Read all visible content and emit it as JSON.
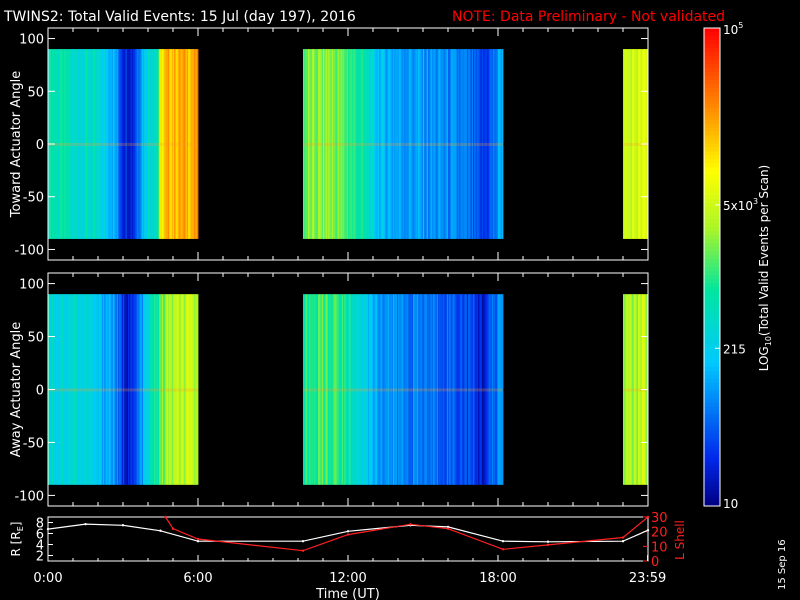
{
  "title": "TWINS2: Total Valid Events: 15 Jul (day 197), 2016",
  "note": "NOTE: Data Preliminary - Not validated",
  "date_stamp": "15 Sep 16",
  "colors": {
    "background": "#000000",
    "text": "#ffffff",
    "note": "#ff0000",
    "r_line": "#ffffff",
    "l_line": "#ff2020"
  },
  "chart_data": [
    {
      "type": "heatmap",
      "name": "toward",
      "ylabel": "Toward Actuator Angle",
      "ylim": [
        -110,
        110
      ],
      "yticks": [
        100,
        50,
        0,
        -50,
        -100
      ],
      "xlim": [
        0,
        24
      ],
      "data_y_range": [
        -90,
        90
      ],
      "segments": [
        {
          "t0": 0.0,
          "t1": 6.0,
          "profile": [
            [
              0.0,
              0.44
            ],
            [
              0.4,
              0.42
            ],
            [
              1.0,
              0.38
            ],
            [
              1.6,
              0.4
            ],
            [
              2.0,
              0.36
            ],
            [
              2.6,
              0.3
            ],
            [
              3.0,
              0.12
            ],
            [
              3.4,
              0.1
            ],
            [
              3.6,
              0.22
            ],
            [
              4.0,
              0.38
            ],
            [
              4.4,
              0.42
            ],
            [
              4.5,
              0.7
            ],
            [
              4.8,
              0.78
            ],
            [
              6.0,
              0.8
            ]
          ]
        },
        {
          "t0": 10.2,
          "t1": 18.2,
          "profile": [
            [
              10.2,
              0.52
            ],
            [
              11.2,
              0.56
            ],
            [
              12.0,
              0.5
            ],
            [
              12.6,
              0.42
            ],
            [
              13.2,
              0.3
            ],
            [
              14.0,
              0.26
            ],
            [
              15.0,
              0.24
            ],
            [
              16.0,
              0.22
            ],
            [
              16.8,
              0.18
            ],
            [
              17.4,
              0.1
            ],
            [
              17.9,
              0.2
            ],
            [
              18.2,
              0.3
            ]
          ]
        },
        {
          "t0": 23.0,
          "t1": 24.0,
          "profile": [
            [
              23.0,
              0.62
            ],
            [
              24.0,
              0.64
            ]
          ]
        }
      ]
    },
    {
      "type": "heatmap",
      "name": "away",
      "ylabel": "Away Actuator Angle",
      "ylim": [
        -110,
        110
      ],
      "yticks": [
        100,
        50,
        0,
        -50,
        -100
      ],
      "xlim": [
        0,
        24
      ],
      "data_y_range": [
        -90,
        90
      ],
      "segments": [
        {
          "t0": 0.0,
          "t1": 6.0,
          "profile": [
            [
              0.0,
              0.4
            ],
            [
              0.4,
              0.36
            ],
            [
              1.0,
              0.38
            ],
            [
              1.6,
              0.34
            ],
            [
              2.0,
              0.3
            ],
            [
              2.6,
              0.26
            ],
            [
              3.0,
              0.1
            ],
            [
              3.4,
              0.08
            ],
            [
              3.6,
              0.18
            ],
            [
              4.0,
              0.36
            ],
            [
              4.4,
              0.48
            ],
            [
              4.8,
              0.58
            ],
            [
              6.0,
              0.6
            ]
          ]
        },
        {
          "t0": 10.2,
          "t1": 18.2,
          "profile": [
            [
              10.2,
              0.46
            ],
            [
              11.2,
              0.5
            ],
            [
              12.0,
              0.44
            ],
            [
              12.6,
              0.36
            ],
            [
              13.2,
              0.26
            ],
            [
              14.0,
              0.22
            ],
            [
              15.0,
              0.2
            ],
            [
              16.0,
              0.18
            ],
            [
              16.8,
              0.14
            ],
            [
              17.4,
              0.08
            ],
            [
              17.9,
              0.18
            ],
            [
              18.2,
              0.26
            ]
          ]
        },
        {
          "t0": 23.0,
          "t1": 24.0,
          "profile": [
            [
              23.0,
              0.58
            ],
            [
              24.0,
              0.6
            ]
          ]
        }
      ]
    },
    {
      "type": "line",
      "name": "orbit",
      "ylabel_left": "R [R",
      "ylabel_left_sub": "E",
      "ylabel_left_end": "]",
      "ylabel_right": "L Shell",
      "ylim_left": [
        1,
        9
      ],
      "ylim_right": [
        0,
        30
      ],
      "yticks_left": [
        "8",
        "6",
        "4",
        "2"
      ],
      "yticks_right": [
        "30",
        "20",
        "10",
        "0"
      ],
      "xlim": [
        0,
        24
      ],
      "xticks": [
        "0:00",
        "6:00",
        "12:00",
        "18:00",
        "23:59"
      ],
      "xlabel": "Time (UT)",
      "series": [
        {
          "name": "R",
          "axis": "left",
          "x": [
            0.0,
            1.5,
            3.0,
            4.5,
            6.0,
            10.2,
            12.0,
            14.5,
            16.0,
            18.2,
            20.0,
            23.0,
            24.0
          ],
          "y": [
            6.8,
            7.7,
            7.5,
            6.5,
            4.6,
            4.6,
            6.4,
            7.5,
            7.2,
            4.6,
            4.5,
            4.6,
            6.6
          ]
        },
        {
          "name": "L Shell",
          "axis": "right",
          "x": [
            4.7,
            5.0,
            6.0,
            10.2,
            12.0,
            14.5,
            16.0,
            18.2,
            20.0,
            23.0,
            24.0
          ],
          "y": [
            30,
            22,
            15,
            7,
            18,
            25,
            22,
            8,
            11,
            16,
            30
          ]
        }
      ]
    },
    {
      "type": "colorbar",
      "name": "colorbar",
      "label": "LOG",
      "label_sub": "10",
      "label_rest": "(Total Valid Events per Scan)",
      "tick_labels": [
        {
          "base": "10",
          "sup": "5",
          "pos": 1.0
        },
        {
          "base": "5x10",
          "sup": "3",
          "pos": 0.63
        },
        {
          "base": "215",
          "sup": "",
          "pos": 0.33
        },
        {
          "base": "10",
          "sup": "",
          "pos": 0.0
        }
      ]
    }
  ]
}
